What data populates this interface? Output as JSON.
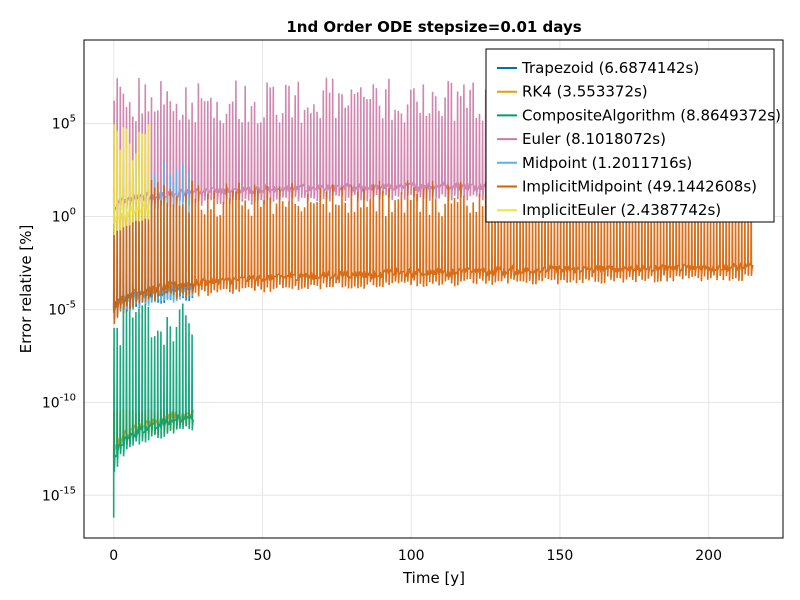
{
  "chart_data": {
    "type": "line",
    "title": "1nd Order ODE stepsize=0.01 days",
    "xlabel": "Time [y]",
    "ylabel": "Error relative [%]",
    "xlim": [
      -10,
      225
    ],
    "ylog": true,
    "ylim_exp": [
      -17.3,
      9.5
    ],
    "xticks": [
      0,
      50,
      100,
      150,
      200
    ],
    "xtick_labels": [
      "0",
      "50",
      "100",
      "150",
      "200"
    ],
    "yticks_exp": [
      -15,
      -10,
      -5,
      0,
      5
    ],
    "ytick_labels": [
      {
        "base": "10",
        "exp": "-15"
      },
      {
        "base": "10",
        "exp": "-10"
      },
      {
        "base": "10",
        "exp": "-5"
      },
      {
        "base": "10",
        "exp": "0"
      },
      {
        "base": "10",
        "exp": "5"
      }
    ],
    "grid": true,
    "legend_position": "top-right",
    "series": [
      {
        "name": "Trapezoid (6.6874142s)",
        "color": "#0072B2",
        "x_end": 27,
        "base_exp": [
          -5.0,
          -3.8
        ],
        "spike_exp": [
          -3.8,
          -3.2
        ],
        "period": 1
      },
      {
        "name": "RK4 (3.553372s)",
        "color": "#E69F00",
        "x_end": 27,
        "base_exp": [
          -12.8,
          -10.6
        ],
        "spike_exp": [
          -10.6,
          -10.3
        ],
        "period": 1
      },
      {
        "name": "CompositeAlgorithm (8.8649372s)",
        "color": "#009E73",
        "x_end": 27,
        "base_exp": [
          -13.2,
          -10.8
        ],
        "spike_exp": [
          -7.0,
          -4.5
        ],
        "period": 1
      },
      {
        "name": "Euler (8.1018072s)",
        "color": "#CC79A7",
        "x_end": 215,
        "base_exp": [
          0.5,
          1.8
        ],
        "spike_exp": [
          5.0,
          7.5
        ],
        "period": 1
      },
      {
        "name": "Midpoint (1.2011716s)",
        "color": "#56B4E9",
        "x_end": 27,
        "base_exp": [
          -5.0,
          -3.8
        ],
        "spike_exp": [
          1.0,
          3.0
        ],
        "period": 1
      },
      {
        "name": "ImplicitMidpoint (49.1442608s)",
        "color": "#D55E00",
        "x_end": 215,
        "base_exp": [
          -5.0,
          -2.7
        ],
        "spike_exp": [
          0.0,
          2.0
        ],
        "period": 1
      },
      {
        "name": "ImplicitEuler (2.4387742s)",
        "color": "#F0E442",
        "x_end": 12,
        "base_exp": [
          -0.5,
          0.5
        ],
        "spike_exp": [
          3.0,
          5.3
        ],
        "period": 1
      }
    ]
  }
}
